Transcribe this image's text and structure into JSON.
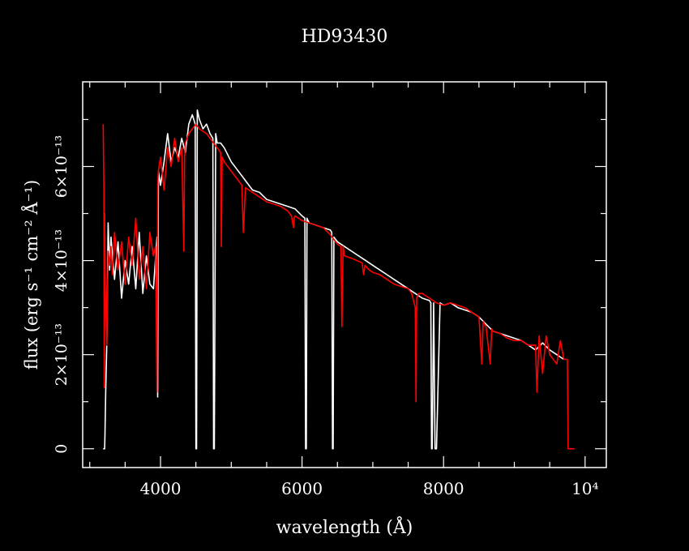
{
  "chart_data": {
    "type": "line",
    "title": "HD93430",
    "xlabel": "wavelength (Å)",
    "ylabel": "flux (erg s⁻¹ cm⁻² Å⁻¹)",
    "xlim": [
      2900,
      10300
    ],
    "ylim": [
      -4e-14,
      7.8e-13
    ],
    "xticks": [
      {
        "value": 4000,
        "label": "4000"
      },
      {
        "value": 6000,
        "label": "6000"
      },
      {
        "value": 8000,
        "label": "8000"
      },
      {
        "value": 10000,
        "label": "10⁴"
      }
    ],
    "yticks": [
      {
        "value": 0,
        "label": "0"
      },
      {
        "value": 2e-13,
        "label": "2×10⁻¹³"
      },
      {
        "value": 4e-13,
        "label": "4×10⁻¹³"
      },
      {
        "value": 6e-13,
        "label": "6×10⁻¹³"
      }
    ],
    "grid": false,
    "series": [
      {
        "color": "#ffffff",
        "x": [
          3190,
          3200,
          3210,
          3215,
          3225,
          3240,
          3260,
          3280,
          3300,
          3350,
          3400,
          3450,
          3500,
          3550,
          3600,
          3650,
          3700,
          3750,
          3800,
          3850,
          3900,
          3950,
          3960,
          3970,
          4000,
          4050,
          4100,
          4150,
          4200,
          4250,
          4300,
          4350,
          4400,
          4450,
          4490,
          4500,
          4510,
          4520,
          4550,
          4600,
          4650,
          4700,
          4740,
          4750,
          4760,
          4780,
          4800,
          4850,
          4900,
          5000,
          5100,
          5200,
          5300,
          5400,
          5500,
          5600,
          5700,
          5800,
          5900,
          6000,
          6040,
          6050,
          6060,
          6070,
          6100,
          6200,
          6300,
          6400,
          6420,
          6430,
          6440,
          6450,
          6500,
          6600,
          6700,
          6800,
          6900,
          7000,
          7100,
          7200,
          7300,
          7400,
          7500,
          7600,
          7700,
          7800,
          7820,
          7830,
          7840,
          7860,
          7880,
          7900,
          7950,
          8000,
          8100,
          8200,
          8300,
          8400,
          8500,
          8600,
          8700,
          8800,
          8900,
          9000,
          9100,
          9200,
          9300,
          9400,
          9500,
          9600,
          9700
        ],
        "y": [
          0,
          0,
          0,
          3e-14,
          1.2e-13,
          2.2e-13,
          4.8e-13,
          3.8e-13,
          4.5e-13,
          3.6e-13,
          4.4e-13,
          3.2e-13,
          4e-13,
          3.5e-13,
          4.3e-13,
          3.4e-13,
          4.6e-13,
          3.3e-13,
          4.1e-13,
          3.5e-13,
          3.4e-13,
          4.5e-13,
          1.1e-13,
          5.9e-13,
          5.6e-13,
          6.1e-13,
          6.7e-13,
          6.1e-13,
          6.4e-13,
          6.2e-13,
          6.6e-13,
          6.3e-13,
          6.9e-13,
          7.1e-13,
          6.9e-13,
          0,
          0,
          7.2e-13,
          7e-13,
          6.8e-13,
          6.9e-13,
          6.7e-13,
          6.6e-13,
          0,
          0,
          6.7e-13,
          6.5e-13,
          6.5e-13,
          6.4e-13,
          6.1e-13,
          5.9e-13,
          5.7e-13,
          5.5e-13,
          5.45e-13,
          5.3e-13,
          5.25e-13,
          5.2e-13,
          5.15e-13,
          5.1e-13,
          4.95e-13,
          4.9e-13,
          0,
          0,
          4.9e-13,
          4.8e-13,
          4.75e-13,
          4.7e-13,
          4.65e-13,
          4.6e-13,
          0,
          0,
          4.5e-13,
          4.4e-13,
          4.3e-13,
          4.2e-13,
          4.1e-13,
          4e-13,
          3.9e-13,
          3.8e-13,
          3.7e-13,
          3.6e-13,
          3.5e-13,
          3.4e-13,
          3.3e-13,
          3.2e-13,
          3.15e-13,
          3.1e-13,
          0,
          0,
          3.1e-13,
          0,
          0,
          3.1e-13,
          3.05e-13,
          3.1e-13,
          3e-13,
          2.95e-13,
          2.9e-13,
          2.8e-13,
          2.65e-13,
          2.5e-13,
          2.45e-13,
          2.4e-13,
          2.35e-13,
          2.3e-13,
          2.2e-13,
          2.1e-13,
          2.25e-13,
          2.1e-13,
          2e-13,
          1.9e-13
        ]
      },
      {
        "color": "#ff0000",
        "x": [
          3190,
          3200,
          3205,
          3210,
          3220,
          3240,
          3260,
          3280,
          3300,
          3320,
          3350,
          3400,
          3450,
          3500,
          3550,
          3600,
          3650,
          3700,
          3750,
          3800,
          3850,
          3900,
          3930,
          3950,
          3960,
          3970,
          4000,
          4050,
          4100,
          4150,
          4200,
          4250,
          4300,
          4330,
          4340,
          4350,
          4400,
          4450,
          4500,
          4550,
          4600,
          4650,
          4700,
          4750,
          4800,
          4850,
          4860,
          4870,
          4900,
          5000,
          5100,
          5150,
          5170,
          5200,
          5300,
          5400,
          5500,
          5600,
          5700,
          5800,
          5850,
          5880,
          5890,
          5900,
          6000,
          6100,
          6200,
          6300,
          6400,
          6500,
          6550,
          6563,
          6580,
          6600,
          6700,
          6850,
          6870,
          6890,
          6950,
          7000,
          7100,
          7200,
          7300,
          7400,
          7500,
          7550,
          7600,
          7610,
          7620,
          7650,
          7700,
          7800,
          7900,
          8000,
          8100,
          8200,
          8300,
          8400,
          8500,
          8540,
          8560,
          8600,
          8660,
          8680,
          8700,
          8800,
          8900,
          9000,
          9100,
          9200,
          9300,
          9320,
          9350,
          9400,
          9450,
          9500,
          9600,
          9650,
          9700,
          9750,
          9760,
          9800,
          9850
        ],
        "y": [
          6.9e-13,
          5.5e-13,
          1.3e-13,
          5e-13,
          3.4e-13,
          2.2e-13,
          4.2e-13,
          3.9e-13,
          4.3e-13,
          3.7e-13,
          4.6e-13,
          3.8e-13,
          4.4e-13,
          3.5e-13,
          4.5e-13,
          3.9e-13,
          4.9e-13,
          3.6e-13,
          4.3e-13,
          3.4e-13,
          4.6e-13,
          4.1e-13,
          4.3e-13,
          1.2e-13,
          5.6e-13,
          5.9e-13,
          6.2e-13,
          5.5e-13,
          6.4e-13,
          6e-13,
          6.6e-13,
          6.1e-13,
          6.4e-13,
          4.2e-13,
          6.2e-13,
          6.5e-13,
          6.7e-13,
          6.8e-13,
          6.9e-13,
          6.8e-13,
          6.75e-13,
          6.7e-13,
          6.6e-13,
          6.5e-13,
          6.4e-13,
          6.3e-13,
          4.3e-13,
          6.2e-13,
          6.1e-13,
          5.9e-13,
          5.7e-13,
          5.6e-13,
          4.6e-13,
          5.55e-13,
          5.45e-13,
          5.35e-13,
          5.25e-13,
          5.2e-13,
          5.15e-13,
          5.05e-13,
          4.95e-13,
          4.7e-13,
          4.9e-13,
          4.95e-13,
          4.85e-13,
          4.8e-13,
          4.75e-13,
          4.7e-13,
          4.55e-13,
          4.35e-13,
          4.3e-13,
          2.6e-13,
          4.3e-13,
          4.1e-13,
          4.05e-13,
          3.95e-13,
          3.7e-13,
          3.9e-13,
          3.8e-13,
          3.75e-13,
          3.7e-13,
          3.6e-13,
          3.5e-13,
          3.45e-13,
          3.4e-13,
          3.3e-13,
          3e-13,
          1e-13,
          3.2e-13,
          3.3e-13,
          3.3e-13,
          3.2e-13,
          3.1e-13,
          3.05e-13,
          3.1e-13,
          3.05e-13,
          3e-13,
          2.9e-13,
          2.8e-13,
          1.8e-13,
          2.7e-13,
          2.6e-13,
          1.8e-13,
          2.55e-13,
          2.5e-13,
          2.45e-13,
          2.35e-13,
          2.3e-13,
          2.3e-13,
          2.2e-13,
          2.2e-13,
          1.2e-13,
          2.4e-13,
          1.6e-13,
          2.4e-13,
          2e-13,
          1.8e-13,
          2.3e-13,
          1.9e-13,
          1.9e-13,
          0,
          0,
          0
        ]
      }
    ]
  }
}
